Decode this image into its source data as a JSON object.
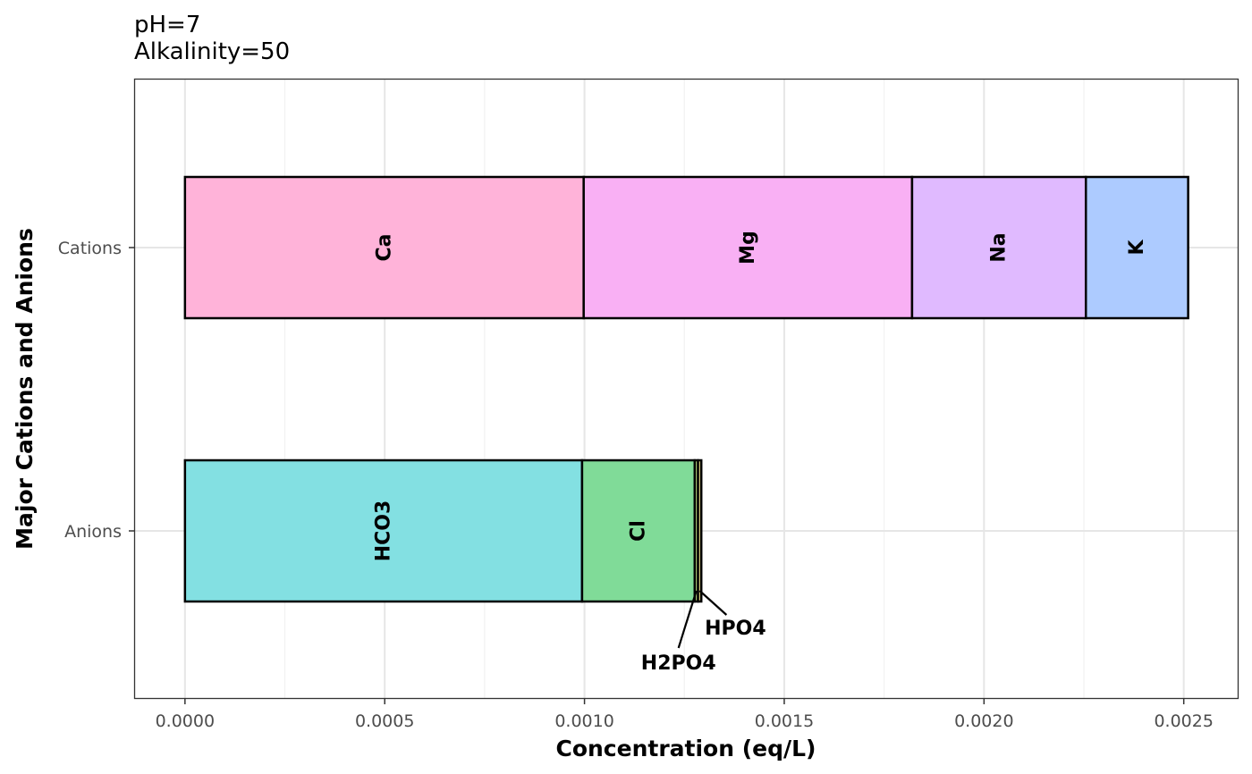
{
  "chart_data": {
    "type": "bar",
    "orientation": "horizontal",
    "stacked": true,
    "title": "",
    "subtitle": [
      "pH=7",
      "Alkalinity=50"
    ],
    "xlabel": "Concentration (eq/L)",
    "ylabel": "Major Cations and Anions",
    "xlim": [
      -0.000125,
      0.002635
    ],
    "x_ticks": [
      0.0,
      0.0005,
      0.001,
      0.0015,
      0.002,
      0.0025
    ],
    "x_tick_labels": [
      "0.0000",
      "0.0005",
      "0.0010",
      "0.0015",
      "0.0020",
      "0.0025"
    ],
    "categories": [
      "Cations",
      "Anions"
    ],
    "grid": true,
    "legend": "none",
    "bars": [
      {
        "category": "Cations",
        "segments": [
          {
            "name": "Ca",
            "value": 0.000998,
            "color": "#FFB3D9"
          },
          {
            "name": "Mg",
            "value": 0.000822,
            "color": "#F9B0F4"
          },
          {
            "name": "Na",
            "value": 0.000435,
            "color": "#E0BAFF"
          },
          {
            "name": "K",
            "value": 0.000256,
            "color": "#ADCBFF"
          }
        ]
      },
      {
        "category": "Anions",
        "segments": [
          {
            "name": "HCO3",
            "value": 0.000994,
            "color": "#83E0E2"
          },
          {
            "name": "Cl",
            "value": 0.000282,
            "color": "#80DB98"
          },
          {
            "name": "H2PO4",
            "value": 8.2e-06,
            "color": "#B9DB80"
          },
          {
            "name": "HPO4",
            "value": 8.2e-06,
            "color": "#DBD080"
          }
        ]
      }
    ]
  }
}
